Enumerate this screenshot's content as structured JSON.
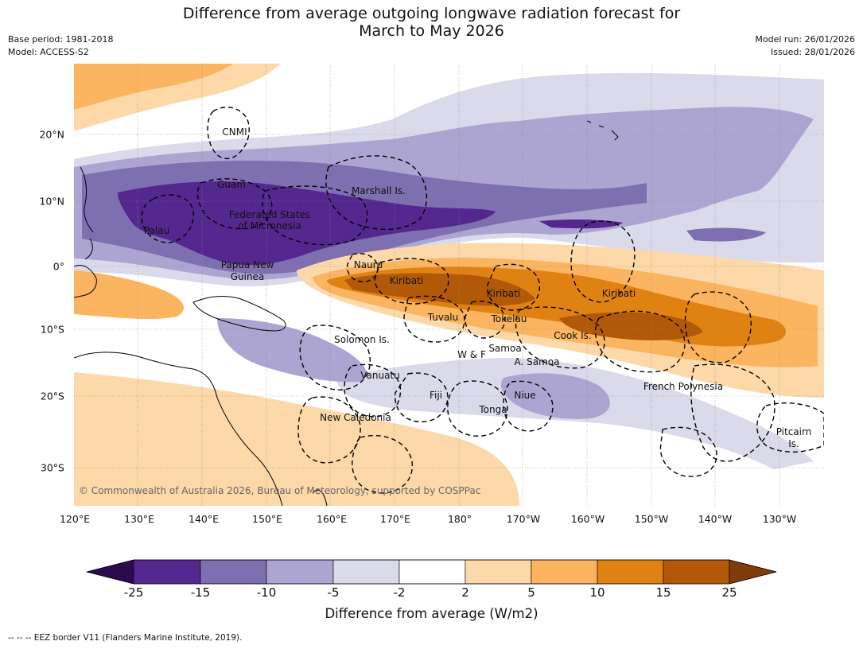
{
  "header": {
    "title_line1": "Difference from average outgoing longwave radiation forecast for",
    "title_line2": "March to May 2026",
    "base_period": "Base period: 1981-2018",
    "model": "Model: ACCESS-S2",
    "model_run": "Model run: 26/01/2026",
    "issued": "Issued: 28/01/2026"
  },
  "map": {
    "lon_labels": [
      "120°E",
      "130°E",
      "140°E",
      "150°E",
      "160°E",
      "170°E",
      "180°",
      "170°W",
      "160°W",
      "150°W",
      "140°W",
      "130°W"
    ],
    "lat_labels": [
      "20°N",
      "10°N",
      "0°",
      "10°S",
      "20°S",
      "30°S"
    ],
    "places": {
      "cnmi": "CNMI",
      "guam": "Guam",
      "marshall": "Marshall Is.",
      "fsm1": "Federated States",
      "fsm2": "of Micronesia",
      "palau": "Palau",
      "png1": "Papua New",
      "png2": "Guinea",
      "nauru": "Nauru",
      "kiribati_w": "Kiribati",
      "kiribati_c": "Kiribati",
      "kiribati_e": "Kiribati",
      "tuvalu": "Tuvalu",
      "tokelau": "Tokelau",
      "cook": "Cook Is.",
      "solomon": "Solomon Is.",
      "wf": "W & F",
      "samoa": "Samoa",
      "asamoa": "A. Samoa",
      "vanuatu": "Vanuatu",
      "fiji": "Fiji",
      "niue": "Niue",
      "tonga": "Tonga",
      "frpoly": "French Polynesia",
      "newcal": "New Caledonia",
      "pitcairn1": "Pitcairn",
      "pitcairn2": "Is."
    },
    "copyright": "© Commonwealth of Australia 2026, Bureau of Meteorology, supported by COSPPac"
  },
  "colorbar": {
    "ticks": [
      "-25",
      "-15",
      "-10",
      "-5",
      "-2",
      "2",
      "5",
      "10",
      "15",
      "25"
    ],
    "colors": [
      "#2d0a4e",
      "#54278f",
      "#7d6fb0",
      "#aca5d1",
      "#dadaeb",
      "#ffffff",
      "#fdd9a9",
      "#fbb460",
      "#e08212",
      "#b15908",
      "#7f3b08"
    ],
    "label": "Difference from average (W/m2)"
  },
  "footer": {
    "legend_note": "--  --  -- EEZ border V11 (Flanders Marine Institute, 2019)."
  }
}
